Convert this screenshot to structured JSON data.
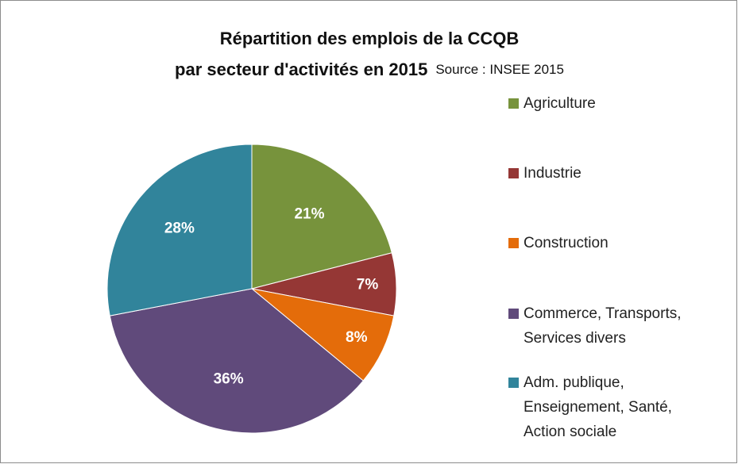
{
  "chart_data": {
    "type": "pie",
    "title": "Répartition des emplois de la CCQB",
    "subtitle": "par secteur d'activités en 2015",
    "source": "Source : INSEE 2015",
    "categories": [
      "Agriculture",
      "Industrie",
      "Construction",
      "Commerce, Transports, Services divers",
      "Adm. publique, Enseignement, Santé, Action sociale"
    ],
    "values": [
      21,
      7,
      8,
      36,
      28
    ],
    "value_labels": [
      "21%",
      "7%",
      "8%",
      "36%",
      "28%"
    ],
    "colors": [
      "#77933c",
      "#953735",
      "#e46c0a",
      "#604a7b",
      "#31849b"
    ],
    "legend": "right"
  }
}
